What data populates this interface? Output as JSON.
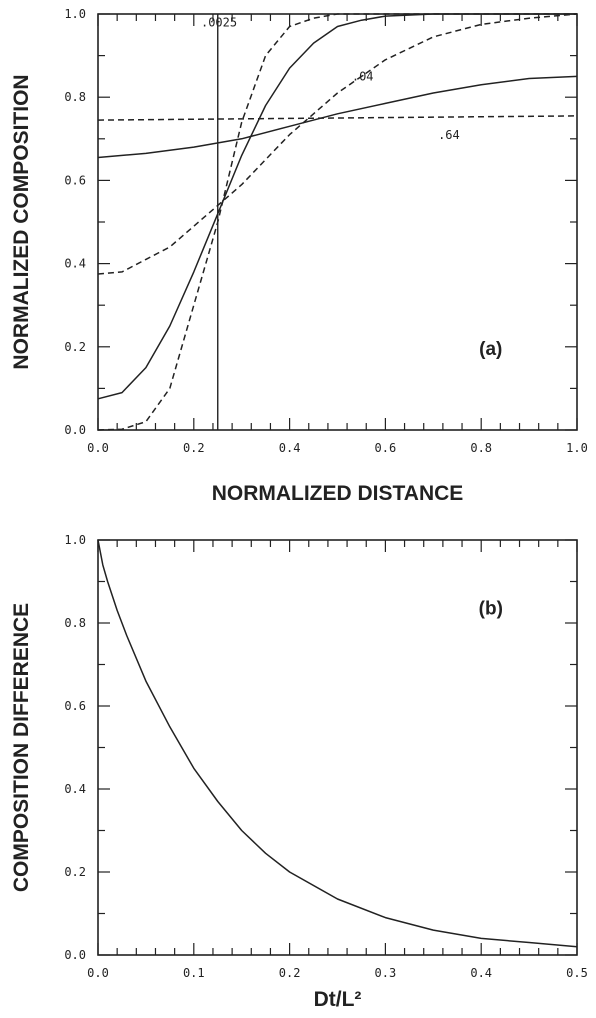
{
  "chart_data": [
    {
      "type": "line",
      "panel_label": "(a)",
      "xlabel": "NORMALIZED DISTANCE",
      "ylabel": "NORMALIZED COMPOSITION",
      "xlim": [
        0,
        1
      ],
      "ylim": [
        0,
        1
      ],
      "x_ticks": [
        "0.0",
        "0.2",
        "0.4",
        "0.6",
        "0.8",
        "1.0"
      ],
      "y_ticks": [
        "0.0",
        "0.2",
        "0.4",
        "0.6",
        "0.8",
        "1.0"
      ],
      "initial_interface_x": 0.25,
      "series": [
        {
          "name": ".0025",
          "style": "dashed",
          "x": [
            0,
            0.05,
            0.1,
            0.15,
            0.2,
            0.25,
            0.3,
            0.35,
            0.4,
            0.45,
            0.5,
            0.6,
            0.7,
            0.8,
            1.0
          ],
          "y": [
            0.0,
            0.002,
            0.02,
            0.1,
            0.3,
            0.5,
            0.74,
            0.9,
            0.97,
            0.99,
            1.0,
            1.0,
            1.0,
            1.0,
            1.0
          ]
        },
        {
          "name": "",
          "style": "solid",
          "x": [
            0,
            0.05,
            0.1,
            0.15,
            0.2,
            0.25,
            0.3,
            0.35,
            0.4,
            0.45,
            0.5,
            0.55,
            0.6,
            0.7,
            0.8,
            1.0
          ],
          "y": [
            0.075,
            0.09,
            0.15,
            0.25,
            0.38,
            0.52,
            0.66,
            0.78,
            0.87,
            0.93,
            0.97,
            0.985,
            0.995,
            1.0,
            1.0,
            1.0
          ]
        },
        {
          "name": ".04",
          "style": "dashed",
          "x": [
            0,
            0.05,
            0.1,
            0.15,
            0.2,
            0.25,
            0.3,
            0.35,
            0.4,
            0.45,
            0.5,
            0.6,
            0.7,
            0.8,
            0.9,
            1.0
          ],
          "y": [
            0.375,
            0.38,
            0.41,
            0.44,
            0.49,
            0.54,
            0.59,
            0.65,
            0.71,
            0.76,
            0.81,
            0.89,
            0.945,
            0.975,
            0.99,
            1.0
          ]
        },
        {
          "name": "",
          "style": "solid",
          "x": [
            0,
            0.1,
            0.2,
            0.3,
            0.4,
            0.5,
            0.6,
            0.7,
            0.8,
            0.9,
            1.0
          ],
          "y": [
            0.655,
            0.665,
            0.68,
            0.7,
            0.73,
            0.76,
            0.785,
            0.81,
            0.83,
            0.845,
            0.85
          ]
        },
        {
          "name": ".64",
          "style": "dashed",
          "x": [
            0,
            1.0
          ],
          "y": [
            0.745,
            0.755
          ]
        }
      ]
    },
    {
      "type": "line",
      "panel_label": "(b)",
      "xlabel": "Dt/L²",
      "ylabel": "COMPOSITION DIFFERENCE",
      "xlim": [
        0,
        0.5
      ],
      "ylim": [
        0,
        1
      ],
      "x_ticks": [
        "0.0",
        "0.1",
        "0.2",
        "0.3",
        "0.4",
        "0.5"
      ],
      "y_ticks": [
        "0.0",
        "0.2",
        "0.4",
        "0.6",
        "0.8",
        "1.0"
      ],
      "series": [
        {
          "name": "",
          "style": "solid",
          "x": [
            0,
            0.005,
            0.01,
            0.02,
            0.03,
            0.05,
            0.075,
            0.1,
            0.125,
            0.15,
            0.175,
            0.2,
            0.25,
            0.3,
            0.35,
            0.4,
            0.45,
            0.5
          ],
          "y": [
            1.0,
            0.94,
            0.9,
            0.83,
            0.77,
            0.66,
            0.55,
            0.45,
            0.37,
            0.3,
            0.245,
            0.2,
            0.135,
            0.09,
            0.06,
            0.04,
            0.03,
            0.02
          ]
        }
      ]
    }
  ]
}
